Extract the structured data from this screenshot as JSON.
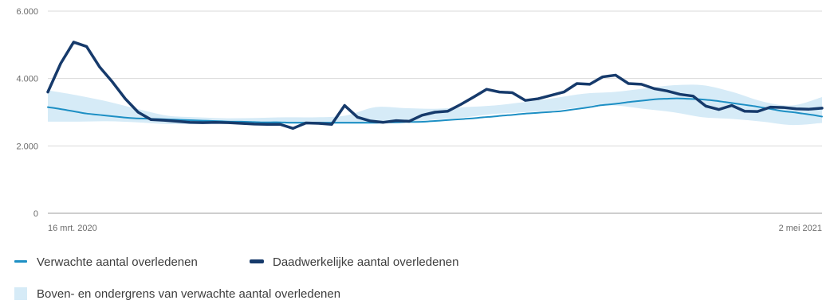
{
  "chart_data": {
    "type": "line",
    "x_start_label": "16 mrt. 2020",
    "x_end_label": "2 mei 2021",
    "y_ticks": [
      0,
      2000,
      4000,
      6000
    ],
    "y_tick_labels": [
      "0",
      "2.000",
      "4.000",
      "6.000"
    ],
    "ylim": [
      0,
      6000
    ],
    "grid": true,
    "legend_position": "bottom",
    "colors": {
      "expected": "#1d8fc4",
      "actual": "#163a6b",
      "band": "#d6ebf7",
      "grid": "#d9d9d9",
      "axis": "#bdbdbd"
    },
    "series": [
      {
        "name": "Verwachte aantal overledenen",
        "values": [
          3150,
          3110,
          3060,
          3010,
          2960,
          2930,
          2900,
          2870,
          2840,
          2820,
          2810,
          2800,
          2790,
          2780,
          2770,
          2760,
          2750,
          2740,
          2730,
          2720,
          2720,
          2710,
          2700,
          2700,
          2700,
          2690,
          2690,
          2690,
          2690,
          2690,
          2690,
          2690,
          2690,
          2690,
          2690,
          2700,
          2700,
          2710,
          2710,
          2720,
          2740,
          2760,
          2780,
          2800,
          2820,
          2850,
          2870,
          2900,
          2920,
          2950,
          2970,
          2990,
          3010,
          3030,
          3070,
          3110,
          3150,
          3200,
          3230,
          3260,
          3300,
          3330,
          3360,
          3390,
          3400,
          3410,
          3400,
          3390,
          3370,
          3340,
          3300,
          3260,
          3220,
          3180,
          3130,
          3080,
          3030,
          3000,
          2960,
          2920,
          2870
        ]
      },
      {
        "name": "Daadwerkelijke aantal overledenen",
        "values": [
          3600,
          4450,
          5080,
          4950,
          4350,
          3900,
          3400,
          3000,
          2780,
          2760,
          2730,
          2700,
          2690,
          2700,
          2690,
          2670,
          2650,
          2640,
          2640,
          2520,
          2680,
          2670,
          2640,
          3200,
          2850,
          2740,
          2700,
          2750,
          2730,
          2910,
          3000,
          3030,
          3230,
          3450,
          3680,
          3600,
          3580,
          3350,
          3400,
          3500,
          3600,
          3850,
          3830,
          4050,
          4100,
          3850,
          3830,
          3700,
          3630,
          3530,
          3480,
          3180,
          3080,
          3200,
          3030,
          3020,
          3150,
          3140,
          3100,
          3090,
          3120
        ]
      }
    ],
    "band": {
      "name": "Boven- en ondergrens van verwachte aantal overledenen",
      "upper": [
        3650,
        3500,
        3320,
        3100,
        2900,
        2850,
        2820,
        2830,
        2850,
        2850,
        2900,
        3150,
        3120,
        3100,
        3150,
        3200,
        3300,
        3420,
        3550,
        3600,
        3700,
        3800,
        3800,
        3600,
        3320,
        3200,
        3450
      ],
      "lower": [
        2720,
        2720,
        2730,
        2700,
        2650,
        2650,
        2650,
        2650,
        2650,
        2650,
        2650,
        2650,
        2700,
        2780,
        2850,
        2950,
        3000,
        3060,
        3150,
        3200,
        3100,
        3000,
        2850,
        2800,
        2720,
        2620,
        2680
      ]
    }
  }
}
